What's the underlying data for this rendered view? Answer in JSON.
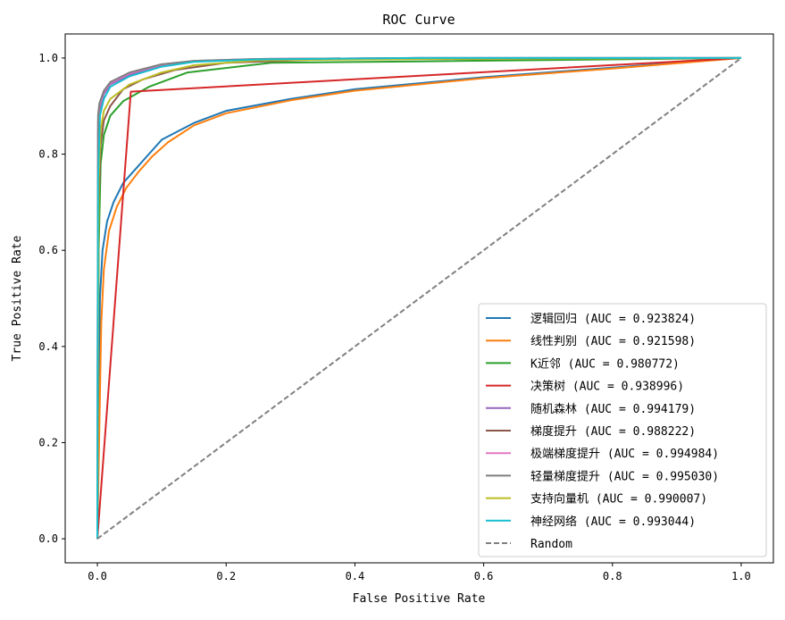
{
  "chart_data": {
    "type": "line",
    "title": "ROC Curve",
    "xlabel": "False Positive Rate",
    "ylabel": "True Positive Rate",
    "xlim": [
      -0.05,
      1.05
    ],
    "ylim": [
      -0.05,
      1.05
    ],
    "xticks": [
      "0.0",
      "0.2",
      "0.4",
      "0.6",
      "0.8",
      "1.0"
    ],
    "yticks": [
      "0.0",
      "0.2",
      "0.4",
      "0.6",
      "0.8",
      "1.0"
    ],
    "grid": false,
    "legend_position": "lower-right",
    "series": [
      {
        "name": "逻辑回归 (AUC = 0.923824)",
        "color": "#1f77b4",
        "x": [
          0,
          0.004,
          0.008,
          0.015,
          0.025,
          0.04,
          0.06,
          0.08,
          0.1,
          0.15,
          0.2,
          0.3,
          0.4,
          0.6,
          0.8,
          1
        ],
        "y": [
          0,
          0.5,
          0.6,
          0.66,
          0.7,
          0.74,
          0.77,
          0.8,
          0.83,
          0.865,
          0.89,
          0.915,
          0.935,
          0.96,
          0.98,
          1
        ]
      },
      {
        "name": "线性判别 (AUC = 0.921598)",
        "color": "#ff7f0e",
        "x": [
          0,
          0.006,
          0.01,
          0.018,
          0.03,
          0.045,
          0.065,
          0.085,
          0.11,
          0.15,
          0.2,
          0.3,
          0.4,
          0.6,
          0.8,
          1
        ],
        "y": [
          0,
          0.45,
          0.56,
          0.64,
          0.69,
          0.73,
          0.765,
          0.795,
          0.825,
          0.86,
          0.885,
          0.912,
          0.932,
          0.958,
          0.978,
          1
        ]
      },
      {
        "name": "K近邻 (AUC = 0.980772)",
        "color": "#2ca02c",
        "x": [
          0,
          0.002,
          0.005,
          0.01,
          0.02,
          0.04,
          0.08,
          0.14,
          0.27,
          0.5,
          1
        ],
        "y": [
          0,
          0.6,
          0.78,
          0.84,
          0.88,
          0.91,
          0.94,
          0.97,
          0.99,
          0.993,
          1
        ]
      },
      {
        "name": "决策树 (AUC = 0.938996)",
        "color": "#d62728",
        "x": [
          0,
          0.052,
          1
        ],
        "y": [
          0,
          0.93,
          1
        ]
      },
      {
        "name": "随机森林 (AUC = 0.994179)",
        "color": "#9467bd",
        "x": [
          0,
          0.001,
          0.003,
          0.01,
          0.02,
          0.05,
          0.1,
          0.15,
          0.25,
          0.5,
          1
        ],
        "y": [
          0,
          0.85,
          0.89,
          0.925,
          0.945,
          0.965,
          0.985,
          0.993,
          0.998,
          1,
          1
        ]
      },
      {
        "name": "梯度提升 (AUC = 0.988222)",
        "color": "#8c564b",
        "x": [
          0,
          0.002,
          0.005,
          0.01,
          0.02,
          0.04,
          0.07,
          0.12,
          0.2,
          0.35,
          1
        ],
        "y": [
          0,
          0.7,
          0.82,
          0.87,
          0.9,
          0.935,
          0.955,
          0.975,
          0.99,
          0.997,
          1
        ]
      },
      {
        "name": "极端梯度提升 (AUC = 0.994984)",
        "color": "#e377c2",
        "x": [
          0,
          0.001,
          0.003,
          0.01,
          0.02,
          0.05,
          0.1,
          0.15,
          0.25,
          0.5,
          1
        ],
        "y": [
          0,
          0.87,
          0.9,
          0.93,
          0.948,
          0.968,
          0.986,
          0.994,
          0.998,
          1,
          1
        ]
      },
      {
        "name": "轻量梯度提升 (AUC = 0.995030)",
        "color": "#7f7f7f",
        "x": [
          0,
          0.001,
          0.003,
          0.01,
          0.02,
          0.05,
          0.1,
          0.15,
          0.25,
          0.5,
          1
        ],
        "y": [
          0,
          0.88,
          0.905,
          0.932,
          0.95,
          0.97,
          0.987,
          0.994,
          0.998,
          1,
          1
        ]
      },
      {
        "name": "支持向量机 (AUC = 0.990007)",
        "color": "#bcbd22",
        "x": [
          0,
          0.002,
          0.005,
          0.01,
          0.02,
          0.05,
          0.1,
          0.15,
          0.25,
          0.5,
          1
        ],
        "y": [
          0,
          0.75,
          0.85,
          0.89,
          0.915,
          0.945,
          0.97,
          0.985,
          0.995,
          0.998,
          1
        ]
      },
      {
        "name": "神经网络 (AUC = 0.993044)",
        "color": "#17becf",
        "x": [
          0,
          0.001,
          0.004,
          0.01,
          0.02,
          0.05,
          0.1,
          0.15,
          0.25,
          0.5,
          1
        ],
        "y": [
          0,
          0.75,
          0.88,
          0.915,
          0.94,
          0.962,
          0.982,
          0.992,
          0.997,
          1,
          1
        ]
      },
      {
        "name": "Random",
        "color": "#808080",
        "dashed": true,
        "x": [
          0,
          1
        ],
        "y": [
          0,
          1
        ]
      }
    ]
  }
}
